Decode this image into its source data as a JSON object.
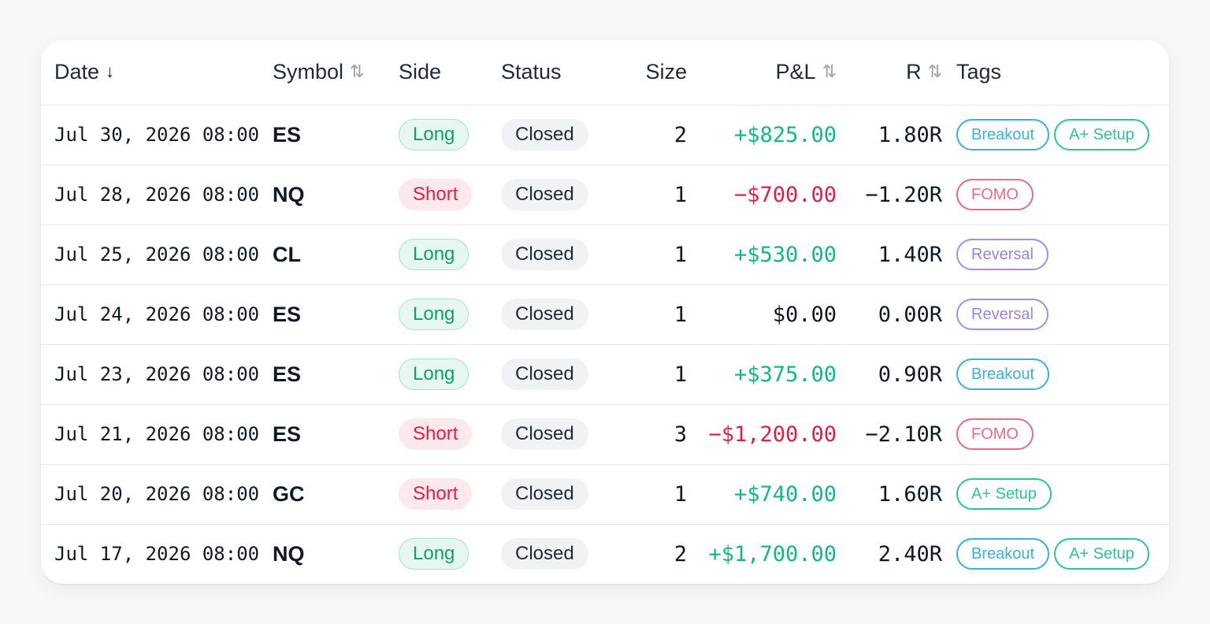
{
  "columns": {
    "date": "Date",
    "date_sort": "↓",
    "symbol": "Symbol",
    "symbol_sort": "⇅",
    "side": "Side",
    "status": "Status",
    "size": "Size",
    "pnl": "P&L",
    "pnl_sort": "⇅",
    "r": "R",
    "r_sort": "⇅",
    "tags": "Tags"
  },
  "colors": {
    "positive": "#10b981",
    "negative": "#e11d48",
    "long_bg": "#e6f7ef",
    "short_bg": "#fde8eb",
    "tag_breakout": "#38b2d8",
    "tag_a_plus_setup": "#2cc39a",
    "tag_fomo": "#ea6a82",
    "tag_reversal": "#9a82e0"
  },
  "trades": [
    {
      "date": "Jul 30, 2026 08:00",
      "symbol": "ES",
      "side": "Long",
      "status": "Closed",
      "size": "2",
      "pnl": "+$825.00",
      "r": "1.80R",
      "tags": [
        "Breakout",
        "A+ Setup"
      ]
    },
    {
      "date": "Jul 28, 2026 08:00",
      "symbol": "NQ",
      "side": "Short",
      "status": "Closed",
      "size": "1",
      "pnl": "−$700.00",
      "r": "−1.20R",
      "tags": [
        "FOMO"
      ]
    },
    {
      "date": "Jul 25, 2026 08:00",
      "symbol": "CL",
      "side": "Long",
      "status": "Closed",
      "size": "1",
      "pnl": "+$530.00",
      "r": "1.40R",
      "tags": [
        "Reversal"
      ]
    },
    {
      "date": "Jul 24, 2026 08:00",
      "symbol": "ES",
      "side": "Long",
      "status": "Closed",
      "size": "1",
      "pnl": "$0.00",
      "r": "0.00R",
      "tags": [
        "Reversal"
      ]
    },
    {
      "date": "Jul 23, 2026 08:00",
      "symbol": "ES",
      "side": "Long",
      "status": "Closed",
      "size": "1",
      "pnl": "+$375.00",
      "r": "0.90R",
      "tags": [
        "Breakout"
      ]
    },
    {
      "date": "Jul 21, 2026 08:00",
      "symbol": "ES",
      "side": "Short",
      "status": "Closed",
      "size": "3",
      "pnl": "−$1,200.00",
      "r": "−2.10R",
      "tags": [
        "FOMO"
      ]
    },
    {
      "date": "Jul 20, 2026 08:00",
      "symbol": "GC",
      "side": "Short",
      "status": "Closed",
      "size": "1",
      "pnl": "+$740.00",
      "r": "1.60R",
      "tags": [
        "A+ Setup"
      ]
    },
    {
      "date": "Jul 17, 2026 08:00",
      "symbol": "NQ",
      "side": "Long",
      "status": "Closed",
      "size": "2",
      "pnl": "+$1,700.00",
      "r": "2.40R",
      "tags": [
        "Breakout",
        "A+ Setup"
      ]
    }
  ]
}
